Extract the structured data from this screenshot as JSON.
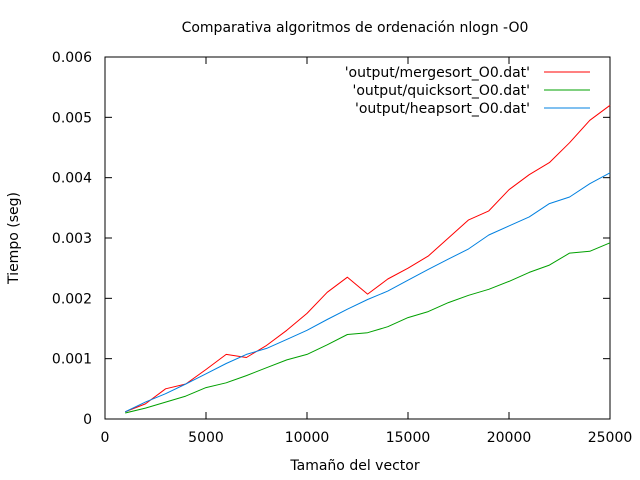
{
  "chart_data": {
    "type": "line",
    "title": "Comparativa algoritmos de ordenación nlogn -O0",
    "xlabel": "Tamaño del vector",
    "ylabel": "Tiempo (seg)",
    "xlim": [
      0,
      25000
    ],
    "ylim": [
      0,
      0.006
    ],
    "x_ticks": [
      0,
      5000,
      10000,
      15000,
      20000,
      25000
    ],
    "x_tick_labels": [
      "0",
      "5000",
      "10000",
      "15000",
      "20000",
      "25000"
    ],
    "y_ticks": [
      0,
      0.001,
      0.002,
      0.003,
      0.004,
      0.005,
      0.006
    ],
    "y_tick_labels": [
      "0",
      "0.001",
      "0.002",
      "0.003",
      "0.004",
      "0.005",
      "0.006"
    ],
    "grid": false,
    "legend_position": "top-right",
    "x": [
      1000,
      2000,
      3000,
      4000,
      5000,
      6000,
      7000,
      8000,
      9000,
      10000,
      11000,
      12000,
      13000,
      14000,
      15000,
      16000,
      17000,
      18000,
      19000,
      20000,
      21000,
      22000,
      23000,
      24000,
      25000
    ],
    "series": [
      {
        "name": "'output/mergesort_O0.dat'",
        "color": "#ff0000",
        "values": [
          0.00012,
          0.00025,
          0.0005,
          0.00058,
          0.00082,
          0.00107,
          0.00102,
          0.00122,
          0.00147,
          0.00175,
          0.0021,
          0.00235,
          0.00207,
          0.00232,
          0.0025,
          0.0027,
          0.003,
          0.0033,
          0.00345,
          0.0038,
          0.00405,
          0.00425,
          0.00458,
          0.00495,
          0.0052
        ]
      },
      {
        "name": "'output/quicksort_O0.dat'",
        "color": "#00a000",
        "values": [
          0.0001,
          0.00018,
          0.00028,
          0.00038,
          0.00052,
          0.0006,
          0.00072,
          0.00085,
          0.00098,
          0.00107,
          0.00123,
          0.0014,
          0.00143,
          0.00153,
          0.00168,
          0.00178,
          0.00193,
          0.00205,
          0.00215,
          0.00228,
          0.00243,
          0.00255,
          0.00275,
          0.00278,
          0.00292
        ]
      },
      {
        "name": "'output/heapsort_O0.dat'",
        "color": "#0080e0",
        "values": [
          0.00012,
          0.00028,
          0.00042,
          0.00058,
          0.00075,
          0.00092,
          0.00107,
          0.00117,
          0.00132,
          0.00147,
          0.00165,
          0.00182,
          0.00198,
          0.00212,
          0.0023,
          0.00248,
          0.00265,
          0.00282,
          0.00305,
          0.0032,
          0.00335,
          0.00357,
          0.00368,
          0.0039,
          0.00408
        ]
      }
    ]
  }
}
